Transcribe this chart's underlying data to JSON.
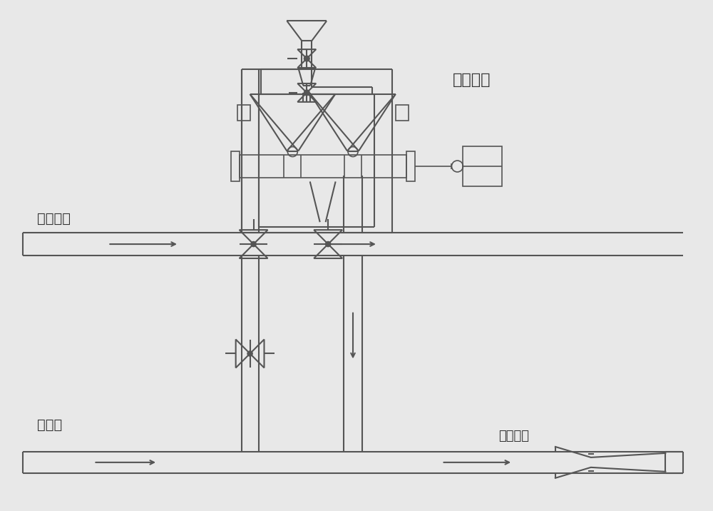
{
  "bg_color": "#e8e8e8",
  "line_color": "#555555",
  "text_color": "#333333",
  "labels": {
    "jialia_xitong": "加料系统",
    "erciqiliu": "二次气流",
    "zhuqiliu": "主气流",
    "jiasu_penzui": "加速喷嘴"
  }
}
